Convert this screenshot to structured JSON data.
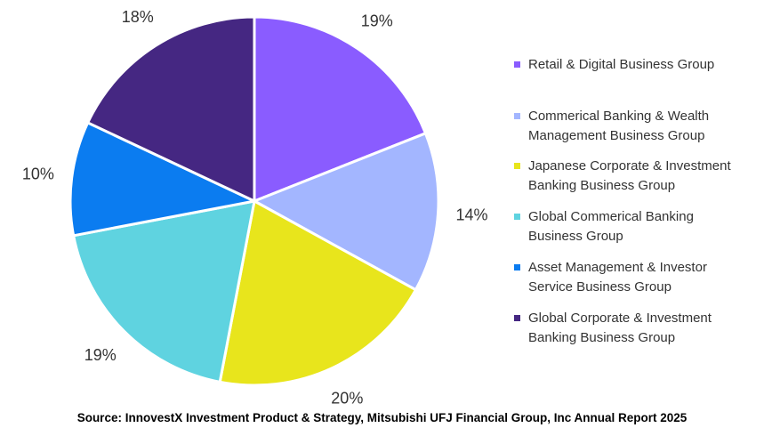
{
  "chart_data": {
    "type": "pie",
    "title": "",
    "categories": [
      "Retail & Digital Business Group",
      "Commerical Banking & Wealth Management Business Group",
      "Japanese Corporate & Investment Banking Business Group",
      "Global Commerical Banking Business Group",
      "Asset Management & Investor Service Business Group",
      "Global Corporate & Investment Banking Business Group"
    ],
    "values": [
      19,
      14,
      20,
      19,
      10,
      18
    ],
    "value_labels": [
      "19%",
      "14%",
      "20%",
      "19%",
      "10%",
      "18%"
    ],
    "colors": [
      "#8a5cff",
      "#a3b6ff",
      "#e8e51c",
      "#5fd3e0",
      "#0b7cf0",
      "#452782"
    ],
    "legend_position": "right",
    "legend_lines": [
      [
        "Retail & Digital Business Group"
      ],
      [
        "Commerical Banking & Wealth",
        "Management Business Group"
      ],
      [
        "Japanese Corporate & Investment",
        "Banking Business Group"
      ],
      [
        "Global Commerical Banking",
        "Business Group"
      ],
      [
        "Asset Management & Investor",
        "Service Business Group"
      ],
      [
        "Global Corporate & Investment",
        "Banking Business Group"
      ]
    ]
  },
  "source": "Source: InnovestX Investment Product & Strategy, Mitsubishi UFJ Financial Group, Inc Annual Report 2025"
}
